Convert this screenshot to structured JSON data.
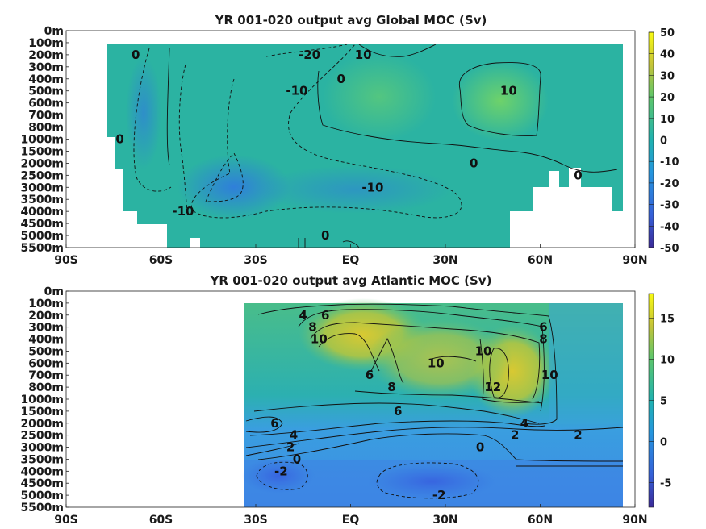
{
  "colors": {
    "global_base": "#2bb3a2",
    "global_low": "#2f8fd4",
    "global_high": "#5dca6a",
    "atl_base": "#3d9be0",
    "atl_mid": "#22b0b4",
    "atl_high": "#c4c93c",
    "atl_low": "#3368e0"
  },
  "chart_data": [
    {
      "type": "heatmap",
      "title": "YR 001-020 output avg  Global MOC (Sv)",
      "x_ticks": [
        "90S",
        "60S",
        "30S",
        "EQ",
        "30N",
        "60N",
        "90N"
      ],
      "x_values": [
        -90,
        -60,
        -30,
        0,
        30,
        60,
        90
      ],
      "y_ticks": [
        "0m",
        "100m",
        "200m",
        "300m",
        "400m",
        "500m",
        "600m",
        "700m",
        "800m",
        "1000m",
        "1500m",
        "2000m",
        "2500m",
        "3000m",
        "3500m",
        "4000m",
        "4500m",
        "5000m",
        "5500m"
      ],
      "colorbar": {
        "ticks": [
          "50",
          "40",
          "30",
          "20",
          "10",
          "0",
          "-10",
          "-20",
          "-30",
          "-40",
          "-50"
        ],
        "min": -50,
        "max": 50
      },
      "contour_labels": [
        {
          "text": "0",
          "lat": -68,
          "depth": "200m"
        },
        {
          "text": "-20",
          "lat": -13,
          "depth": "200m"
        },
        {
          "text": "10",
          "lat": 4,
          "depth": "200m"
        },
        {
          "text": "-10",
          "lat": -17,
          "depth": "500m"
        },
        {
          "text": "0",
          "lat": -3,
          "depth": "400m"
        },
        {
          "text": "10",
          "lat": 50,
          "depth": "500m"
        },
        {
          "text": "0",
          "lat": -73,
          "depth": "1000m"
        },
        {
          "text": "0",
          "lat": 39,
          "depth": "2000m"
        },
        {
          "text": "0",
          "lat": 72,
          "depth": "2500m"
        },
        {
          "text": "-10",
          "lat": -53,
          "depth": "4000m"
        },
        {
          "text": "-10",
          "lat": 7,
          "depth": "3000m"
        },
        {
          "text": "0",
          "lat": -8,
          "depth": "5000m"
        }
      ]
    },
    {
      "type": "heatmap",
      "title": "YR 001-020 output avg  Atlantic MOC (Sv)",
      "x_ticks": [
        "90S",
        "60S",
        "30S",
        "EQ",
        "30N",
        "60N",
        "90N"
      ],
      "x_values": [
        -90,
        -60,
        -30,
        0,
        30,
        60,
        90
      ],
      "y_ticks": [
        "0m",
        "100m",
        "200m",
        "300m",
        "400m",
        "500m",
        "600m",
        "700m",
        "800m",
        "1000m",
        "1500m",
        "2000m",
        "2500m",
        "3000m",
        "3500m",
        "4000m",
        "4500m",
        "5000m",
        "5500m"
      ],
      "colorbar": {
        "ticks": [
          "15",
          "10",
          "5",
          "0",
          "-5"
        ],
        "min": -8,
        "max": 18
      },
      "contour_labels": [
        {
          "text": "4",
          "lat": -15,
          "depth": "200m"
        },
        {
          "text": "6",
          "lat": -8,
          "depth": "200m"
        },
        {
          "text": "8",
          "lat": -12,
          "depth": "300m"
        },
        {
          "text": "10",
          "lat": -10,
          "depth": "400m"
        },
        {
          "text": "6",
          "lat": 6,
          "depth": "700m"
        },
        {
          "text": "8",
          "lat": 13,
          "depth": "800m"
        },
        {
          "text": "10",
          "lat": 27,
          "depth": "600m"
        },
        {
          "text": "10",
          "lat": 42,
          "depth": "500m"
        },
        {
          "text": "12",
          "lat": 45,
          "depth": "800m"
        },
        {
          "text": "6",
          "lat": 61,
          "depth": "300m"
        },
        {
          "text": "8",
          "lat": 61,
          "depth": "400m"
        },
        {
          "text": "10",
          "lat": 63,
          "depth": "700m"
        },
        {
          "text": "6",
          "lat": 15,
          "depth": "1500m"
        },
        {
          "text": "6",
          "lat": -24,
          "depth": "2000m"
        },
        {
          "text": "4",
          "lat": -18,
          "depth": "2500m"
        },
        {
          "text": "4",
          "lat": 55,
          "depth": "2000m"
        },
        {
          "text": "2",
          "lat": -19,
          "depth": "3000m"
        },
        {
          "text": "2",
          "lat": 52,
          "depth": "2500m"
        },
        {
          "text": "2",
          "lat": 72,
          "depth": "2500m"
        },
        {
          "text": "0",
          "lat": -17,
          "depth": "3500m"
        },
        {
          "text": "0",
          "lat": 41,
          "depth": "3000m"
        },
        {
          "text": "-2",
          "lat": -22,
          "depth": "4000m"
        },
        {
          "text": "-2",
          "lat": 28,
          "depth": "5000m"
        }
      ]
    }
  ]
}
